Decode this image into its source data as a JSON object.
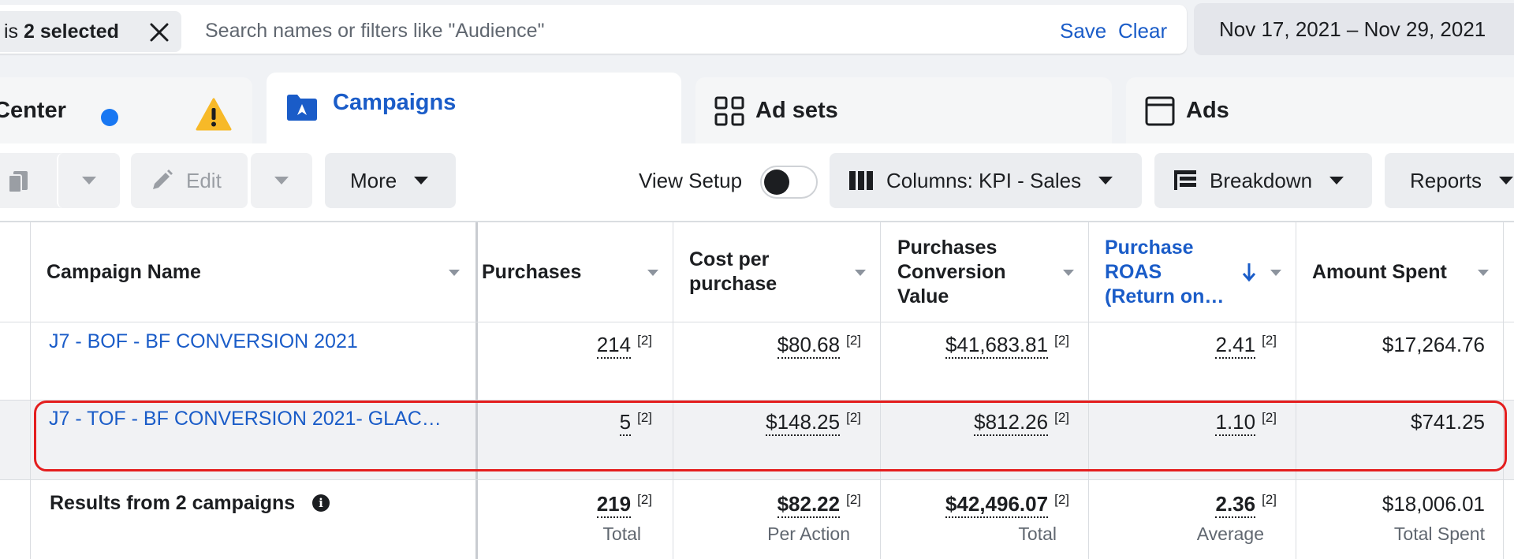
{
  "filter": {
    "chip_prefix": "is",
    "chip_bold": "2 selected",
    "search_placeholder": "Search names or filters like \"Audience\"",
    "save_label": "Save",
    "clear_label": "Clear",
    "date_range": "Nov 17, 2021 – Nov 29, 2021"
  },
  "tabs": [
    {
      "label": "Center",
      "icon": "warning-icon"
    },
    {
      "label": "Campaigns",
      "icon": "folder-icon",
      "active": true
    },
    {
      "label": "Ad sets",
      "icon": "grid-icon"
    },
    {
      "label": "Ads",
      "icon": "ad-window-icon"
    }
  ],
  "toolbar": {
    "edit_label": "Edit",
    "more_label": "More",
    "view_setup_label": "View Setup",
    "view_setup_on": false,
    "columns_label": "Columns: KPI - Sales",
    "breakdown_label": "Breakdown",
    "reports_label": "Reports"
  },
  "table": {
    "headers": {
      "campaign_name": "Campaign Name",
      "purchases": "Purchases",
      "cost_per_purchase": "Cost per purchase",
      "conversion_value": "Purchases Conversion Value",
      "roas": "Purchase ROAS (Return on…",
      "amount_spent": "Amount Spent"
    },
    "sort_column": "roas",
    "sort_direction": "descending",
    "footnote": "[2]",
    "rows": [
      {
        "name": "J7 - BOF - BF CONVERSION 2021",
        "purchases": "214",
        "cost_per_purchase": "$80.68",
        "conversion_value": "$41,683.81",
        "roas": "2.41",
        "amount_spent": "$17,264.76"
      },
      {
        "name": "J7 - TOF - BF CONVERSION 2021- GLAC…",
        "purchases": "5",
        "cost_per_purchase": "$148.25",
        "conversion_value": "$812.26",
        "roas": "1.10",
        "amount_spent": "$741.25",
        "highlighted": true
      }
    ],
    "totals": {
      "label": "Results from 2 campaigns",
      "purchases": "219",
      "purchases_sub": "Total",
      "cost_per_purchase": "$82.22",
      "cost_per_purchase_sub": "Per Action",
      "conversion_value": "$42,496.07",
      "conversion_value_sub": "Total",
      "roas": "2.36",
      "roas_sub": "Average",
      "amount_spent": "$18,006.01",
      "amount_spent_sub": "Total Spent"
    }
  },
  "colors": {
    "link_blue": "#1a5cc8",
    "highlight_red": "#e41e1e",
    "warning_yellow": "#f7b928",
    "dot_blue": "#1877f2"
  }
}
